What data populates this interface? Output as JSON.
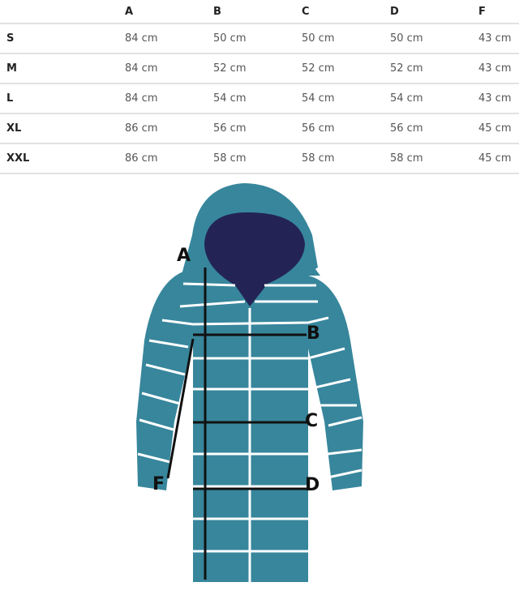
{
  "table": {
    "columns": [
      "",
      "A",
      "B",
      "C",
      "D",
      "F"
    ],
    "rows": [
      {
        "size": "S",
        "values": [
          "84 cm",
          "50 cm",
          "50 cm",
          "50 cm",
          "43 cm"
        ]
      },
      {
        "size": "M",
        "values": [
          "84 cm",
          "52 cm",
          "52 cm",
          "52 cm",
          "43 cm"
        ]
      },
      {
        "size": "L",
        "values": [
          "84 cm",
          "54 cm",
          "54 cm",
          "54 cm",
          "43 cm"
        ]
      },
      {
        "size": "XL",
        "values": [
          "86 cm",
          "56 cm",
          "56 cm",
          "56 cm",
          "45 cm"
        ]
      },
      {
        "size": "XXL",
        "values": [
          "86 cm",
          "58 cm",
          "58 cm",
          "58 cm",
          "45 cm"
        ]
      }
    ]
  },
  "diagram": {
    "labels": {
      "a": "A",
      "b": "B",
      "c": "C",
      "d": "D",
      "f": "F"
    },
    "colors": {
      "coat": "#37869c",
      "hood_inside": "#232455",
      "quilting": "#ffffff",
      "lines": "#111111"
    }
  }
}
